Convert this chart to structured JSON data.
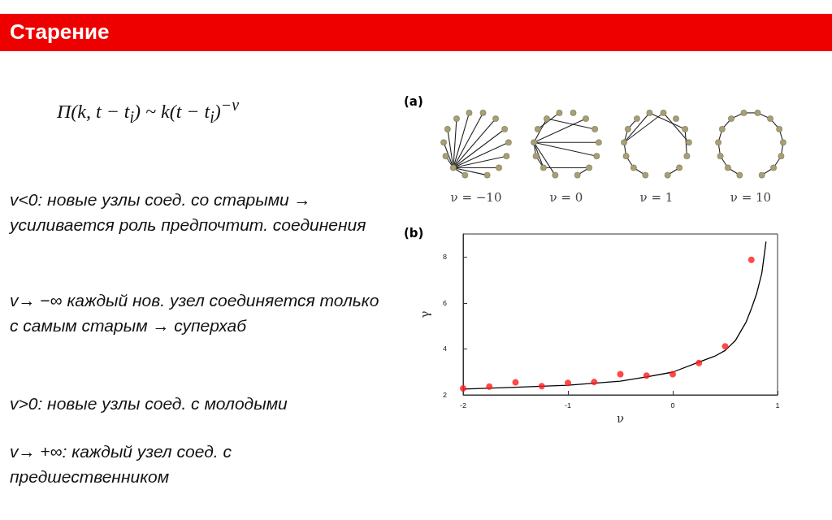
{
  "chart_data": {
    "type": "scatter",
    "title": "Старение",
    "xlabel": "ν",
    "ylabel": "γ",
    "xlim": [
      -2,
      1
    ],
    "xticks": [
      -2,
      -1,
      0,
      1
    ],
    "ylim": [
      2,
      9
    ],
    "yticks": [
      2,
      4,
      6,
      8
    ],
    "grid": false,
    "marker": "circle",
    "series": [
      {
        "type": "scatter",
        "color": "#ff1a1a",
        "x": [
          -2,
          -1.75,
          -1.5,
          -1.25,
          -1,
          -0.75,
          -0.5,
          -0.25,
          0,
          0.25,
          0.5,
          0.75
        ],
        "values": [
          2.28,
          2.36,
          2.55,
          2.38,
          2.52,
          2.56,
          2.9,
          2.84,
          2.9,
          3.39,
          4.11,
          7.88
        ]
      },
      {
        "type": "line",
        "color": "#000000",
        "marker": "none",
        "x": [
          -2,
          -1.5,
          -1,
          -0.5,
          -0.25,
          0,
          0.25,
          0.4,
          0.5,
          0.6,
          0.7,
          0.75,
          0.8,
          0.85,
          0.89
        ],
        "values": [
          2.25,
          2.33,
          2.42,
          2.6,
          2.78,
          2.99,
          3.43,
          3.68,
          3.93,
          4.38,
          5.17,
          5.75,
          6.4,
          7.3,
          8.67
        ]
      }
    ],
    "annotations": [
      "Π(k, t − t$_{i}$) ~ k(t − t$_{i}$)$^{−ν}$",
      "v<0:  новые узлы соед. со старыми → усиливается роль предпочтит. соединения",
      "v→ −∞ каждый нов. узел соединяется только с самым старым → суперхаб",
      "v>0: новые узлы соед. с молодыми",
      "v→ +∞:  каждый узел соед. с предшественником",
      "(a)",
      "(b)",
      "ν = −10",
      "ν = 0",
      "ν = 1",
      "ν = 10"
    ]
  }
}
